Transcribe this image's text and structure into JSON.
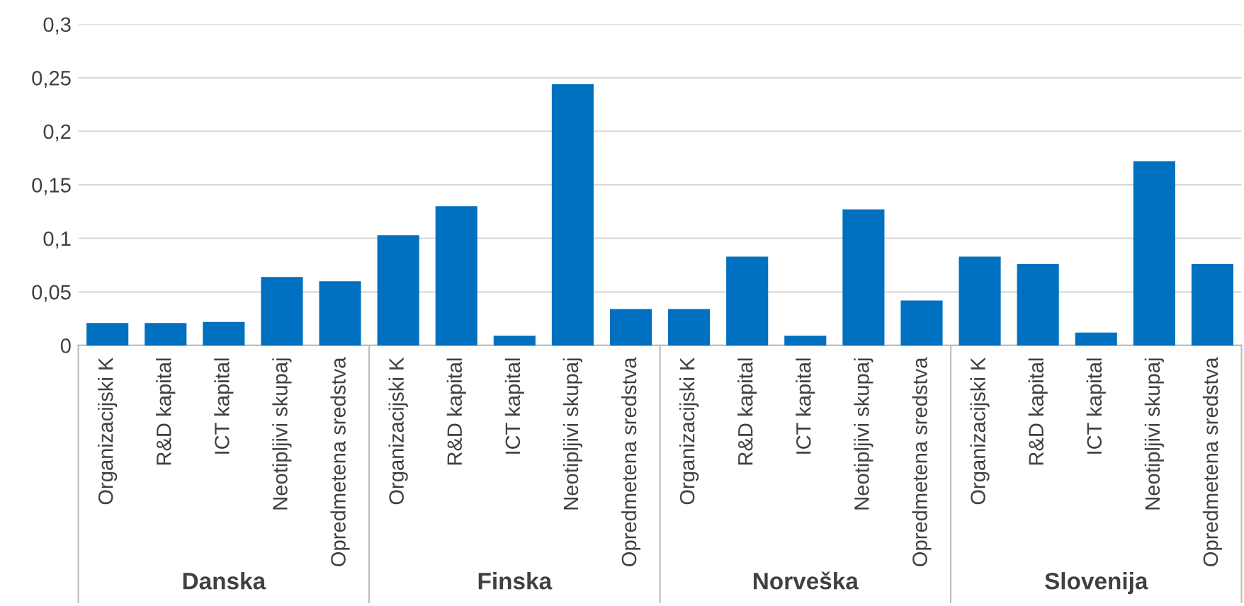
{
  "chart_data": {
    "type": "bar",
    "color": "#0070c0",
    "categories": [
      "Organizacijski K",
      "R&D kapital",
      "ICT kapital",
      "Neotipljivi skupaj",
      "Opredmetena sredstva",
      "Organizacijski K",
      "R&D kapital",
      "ICT kapital",
      "Neotipljivi skupaj",
      "Opredmetena sredstva",
      "Organizacijski K",
      "R&D kapital",
      "ICT kapital",
      "Neotipljivi skupaj",
      "Opredmetena sredstva",
      "Organizacijski K",
      "R&D kapital",
      "ICT kapital",
      "Neotipljivi skupaj",
      "Opredmetena sredstva"
    ],
    "values": [
      0.021,
      0.021,
      0.022,
      0.064,
      0.06,
      0.103,
      0.13,
      0.009,
      0.244,
      0.034,
      0.034,
      0.083,
      0.009,
      0.127,
      0.042,
      0.083,
      0.076,
      0.012,
      0.172,
      0.076
    ],
    "annotations": [
      "Danska",
      "Finska",
      "Norveška",
      "Slovenija"
    ],
    "ylim": [
      0,
      0.3
    ],
    "yticks": [
      0,
      {
        "value": 0.05,
        "label": "0,05"
      },
      {
        "value": 0.1,
        "label": "0,1"
      },
      {
        "value": 0.15,
        "label": "0,15"
      },
      {
        "value": 0.2,
        "label": "0,2"
      },
      {
        "value": 0.25,
        "label": "0,25"
      },
      {
        "value": 0.3,
        "label": "0,3"
      }
    ],
    "grid": "y",
    "legend": false
  }
}
